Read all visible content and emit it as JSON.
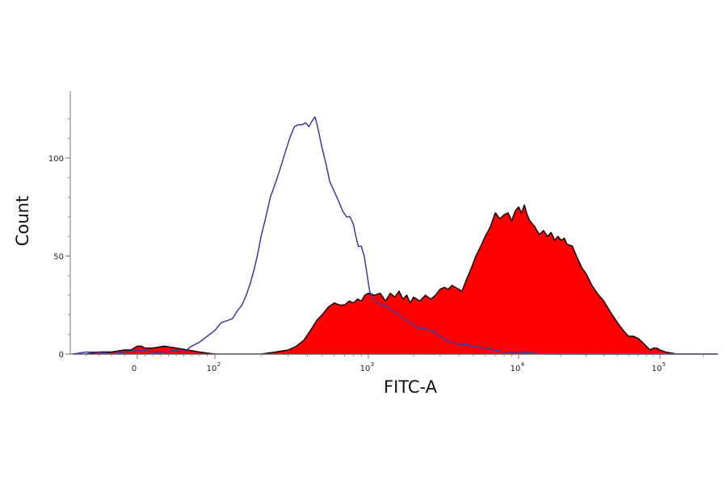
{
  "chart_data": {
    "type": "area",
    "title": "",
    "xlabel": "FITC-A",
    "ylabel": "Count",
    "x_scale": "biexponential",
    "xlim": [
      -50,
      250000
    ],
    "ylim": [
      0,
      125
    ],
    "grid": false,
    "legend": "none",
    "x_ticks": [
      {
        "value": 0,
        "label": "0",
        "exp": ""
      },
      {
        "value": 100,
        "label": "10",
        "exp": "2"
      },
      {
        "value": 1000,
        "label": "10",
        "exp": "3"
      },
      {
        "value": 10000,
        "label": "10",
        "exp": "4"
      },
      {
        "value": 100000,
        "label": "10",
        "exp": "5"
      }
    ],
    "y_ticks": [
      {
        "value": 0,
        "label": "0"
      },
      {
        "value": 50,
        "label": "50"
      },
      {
        "value": 100,
        "label": "100"
      }
    ],
    "series": [
      {
        "style": "filled",
        "color": "#ff0000",
        "outline": "#1a0000",
        "points": [
          [
            -50,
            0
          ],
          [
            -40,
            0
          ],
          [
            -30,
            1
          ],
          [
            -20,
            1
          ],
          [
            -10,
            2
          ],
          [
            -5,
            2
          ],
          [
            0,
            4
          ],
          [
            5,
            4
          ],
          [
            10,
            3
          ],
          [
            20,
            3
          ],
          [
            35,
            4
          ],
          [
            50,
            3
          ],
          [
            65,
            2
          ],
          [
            80,
            1
          ],
          [
            100,
            0
          ],
          [
            150,
            0
          ],
          [
            200,
            0
          ],
          [
            250,
            1
          ],
          [
            300,
            2
          ],
          [
            340,
            4
          ],
          [
            380,
            7
          ],
          [
            420,
            12
          ],
          [
            460,
            17
          ],
          [
            500,
            20
          ],
          [
            550,
            24
          ],
          [
            600,
            26
          ],
          [
            650,
            25
          ],
          [
            700,
            25
          ],
          [
            750,
            27
          ],
          [
            800,
            26
          ],
          [
            850,
            28
          ],
          [
            900,
            27
          ],
          [
            950,
            30
          ],
          [
            1000,
            31
          ],
          [
            1100,
            30
          ],
          [
            1200,
            31
          ],
          [
            1300,
            27
          ],
          [
            1400,
            31
          ],
          [
            1500,
            29
          ],
          [
            1600,
            32
          ],
          [
            1700,
            28
          ],
          [
            1800,
            30
          ],
          [
            1900,
            26
          ],
          [
            2000,
            29
          ],
          [
            2200,
            27
          ],
          [
            2400,
            30
          ],
          [
            2600,
            28
          ],
          [
            2800,
            30
          ],
          [
            3000,
            33
          ],
          [
            3200,
            34
          ],
          [
            3400,
            33
          ],
          [
            3600,
            35
          ],
          [
            3800,
            34
          ],
          [
            4000,
            33
          ],
          [
            4200,
            32
          ],
          [
            4500,
            38
          ],
          [
            4800,
            43
          ],
          [
            5200,
            50
          ],
          [
            5600,
            55
          ],
          [
            6000,
            60
          ],
          [
            6500,
            65
          ],
          [
            7000,
            72
          ],
          [
            7500,
            69
          ],
          [
            8000,
            71
          ],
          [
            8500,
            72
          ],
          [
            9000,
            68
          ],
          [
            9500,
            73
          ],
          [
            10000,
            75
          ],
          [
            10500,
            72
          ],
          [
            11000,
            76
          ],
          [
            11500,
            71
          ],
          [
            12000,
            68
          ],
          [
            13000,
            65
          ],
          [
            14000,
            61
          ],
          [
            15000,
            63
          ],
          [
            16000,
            60
          ],
          [
            17000,
            62
          ],
          [
            18000,
            58
          ],
          [
            19000,
            60
          ],
          [
            20000,
            58
          ],
          [
            21000,
            59
          ],
          [
            22000,
            56
          ],
          [
            24000,
            55
          ],
          [
            26000,
            49
          ],
          [
            28000,
            44
          ],
          [
            30000,
            41
          ],
          [
            33000,
            35
          ],
          [
            36000,
            31
          ],
          [
            40000,
            27
          ],
          [
            45000,
            21
          ],
          [
            50000,
            16
          ],
          [
            55000,
            12
          ],
          [
            60000,
            9
          ],
          [
            65000,
            9
          ],
          [
            70000,
            8
          ],
          [
            75000,
            6
          ],
          [
            80000,
            4
          ],
          [
            85000,
            2
          ],
          [
            90000,
            3
          ],
          [
            95000,
            3
          ],
          [
            100000,
            2
          ],
          [
            110000,
            1
          ],
          [
            130000,
            0
          ],
          [
            250000,
            0
          ]
        ]
      },
      {
        "style": "line",
        "color": "#3a3aa8",
        "points": [
          [
            -50,
            0
          ],
          [
            -40,
            1
          ],
          [
            -30,
            1
          ],
          [
            -20,
            0
          ],
          [
            -10,
            1
          ],
          [
            0,
            2
          ],
          [
            10,
            2
          ],
          [
            20,
            1
          ],
          [
            35,
            1
          ],
          [
            50,
            2
          ],
          [
            60,
            1
          ],
          [
            70,
            4
          ],
          [
            80,
            6
          ],
          [
            90,
            9
          ],
          [
            100,
            12
          ],
          [
            110,
            16
          ],
          [
            120,
            17
          ],
          [
            130,
            18
          ],
          [
            140,
            22
          ],
          [
            150,
            25
          ],
          [
            160,
            30
          ],
          [
            170,
            36
          ],
          [
            180,
            43
          ],
          [
            190,
            51
          ],
          [
            200,
            60
          ],
          [
            215,
            70
          ],
          [
            230,
            80
          ],
          [
            250,
            88
          ],
          [
            270,
            96
          ],
          [
            290,
            104
          ],
          [
            310,
            111
          ],
          [
            330,
            116
          ],
          [
            350,
            117
          ],
          [
            370,
            117
          ],
          [
            390,
            118
          ],
          [
            410,
            116
          ],
          [
            430,
            119
          ],
          [
            450,
            121
          ],
          [
            470,
            115
          ],
          [
            500,
            105
          ],
          [
            530,
            97
          ],
          [
            560,
            88
          ],
          [
            600,
            83
          ],
          [
            640,
            78
          ],
          [
            680,
            73
          ],
          [
            720,
            70
          ],
          [
            760,
            70
          ],
          [
            800,
            66
          ],
          [
            830,
            60
          ],
          [
            860,
            55
          ],
          [
            900,
            55
          ],
          [
            940,
            50
          ],
          [
            980,
            41
          ],
          [
            1020,
            32
          ],
          [
            1080,
            28
          ],
          [
            1150,
            26
          ],
          [
            1250,
            25
          ],
          [
            1350,
            24
          ],
          [
            1450,
            22
          ],
          [
            1600,
            20
          ],
          [
            1800,
            17
          ],
          [
            2000,
            15
          ],
          [
            2200,
            13
          ],
          [
            2400,
            13
          ],
          [
            2600,
            12
          ],
          [
            2800,
            11
          ],
          [
            3000,
            9
          ],
          [
            3300,
            7
          ],
          [
            3600,
            6
          ],
          [
            4000,
            5
          ],
          [
            4500,
            5
          ],
          [
            5000,
            4
          ],
          [
            6000,
            3
          ],
          [
            7000,
            2
          ],
          [
            8000,
            1
          ],
          [
            10000,
            1
          ],
          [
            15000,
            0
          ],
          [
            250000,
            0
          ]
        ]
      }
    ]
  }
}
